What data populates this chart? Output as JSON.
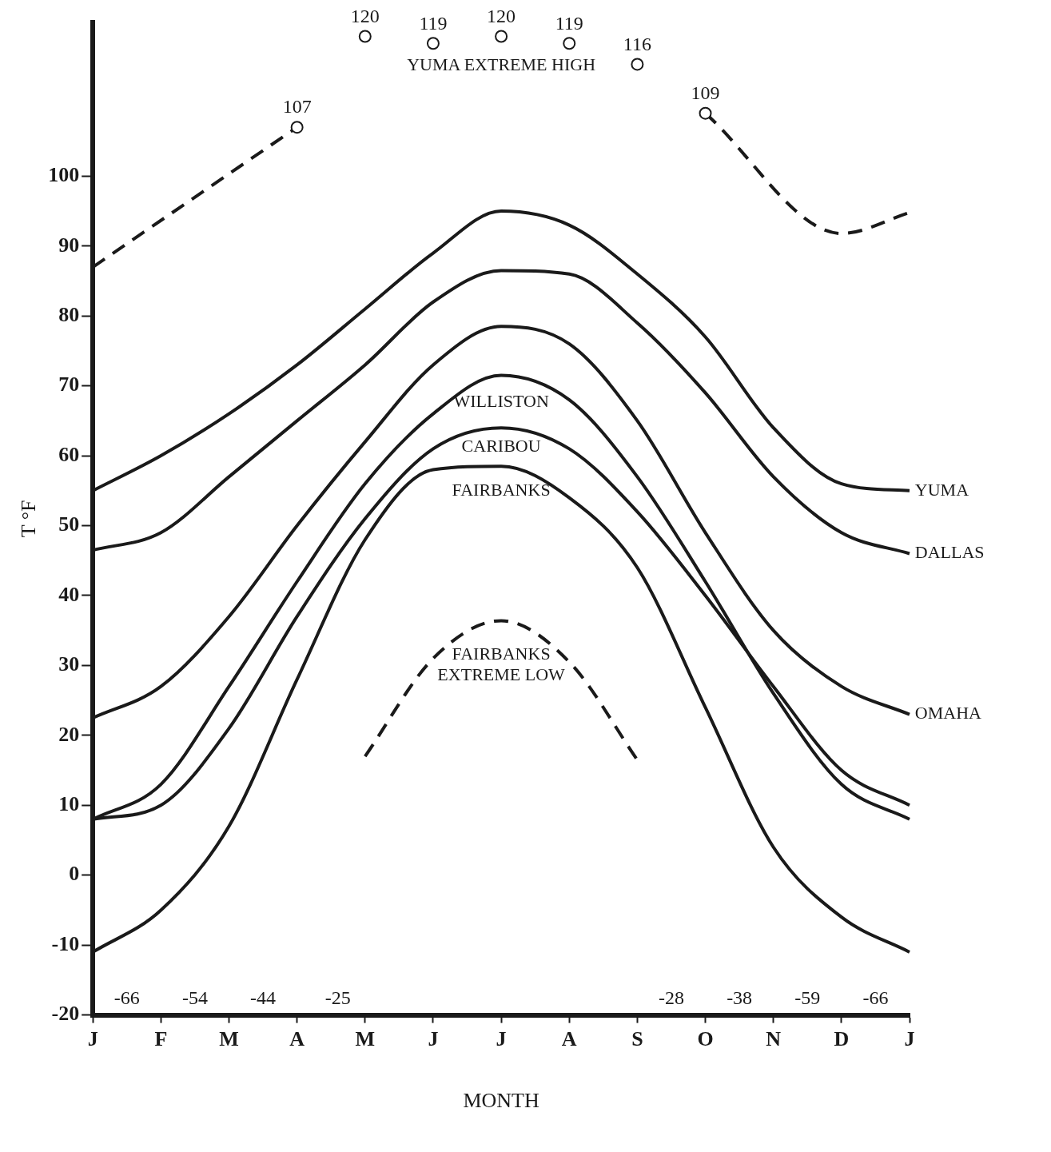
{
  "chart_data": {
    "type": "line",
    "xlabel": "MONTH",
    "ylabel": "T °F",
    "categories": [
      "J",
      "F",
      "M",
      "A",
      "M",
      "J",
      "J",
      "A",
      "S",
      "O",
      "N",
      "D",
      "J"
    ],
    "ylim": [
      -20,
      122
    ],
    "yticks": [
      -20,
      -10,
      0,
      10,
      20,
      30,
      40,
      50,
      60,
      70,
      80,
      90,
      100
    ],
    "grid": false,
    "legend": false,
    "marker": "none",
    "line_style": "solid",
    "series": [
      {
        "name": "YUMA",
        "color": "#1a1a1a",
        "values": [
          55,
          60,
          66,
          73,
          81,
          89,
          95,
          93,
          86,
          77,
          64,
          56,
          55
        ]
      },
      {
        "name": "DALLAS",
        "color": "#1a1a1a",
        "values": [
          46.5,
          49,
          57,
          65,
          73,
          82,
          86.5,
          86,
          79,
          69,
          57,
          49,
          46
        ]
      },
      {
        "name": "OMAHA",
        "color": "#1a1a1a",
        "values": [
          22.5,
          27,
          37,
          50,
          62,
          73,
          78.5,
          76,
          65,
          49,
          35,
          27,
          23
        ]
      },
      {
        "name": "WILLISTON",
        "color": "#1a1a1a",
        "values": [
          8,
          13,
          27,
          42,
          56,
          66,
          71.5,
          68,
          57,
          42,
          26,
          13,
          8
        ]
      },
      {
        "name": "CARIBOU",
        "color": "#1a1a1a",
        "values": [
          8,
          10,
          21,
          37,
          51,
          61,
          64,
          61,
          52,
          40,
          27,
          15,
          10
        ]
      },
      {
        "name": "FAIRBANKS",
        "color": "#1a1a1a",
        "values": [
          -11,
          -5,
          7,
          28,
          48,
          58,
          58.5,
          54,
          44,
          24,
          4,
          -6,
          -11
        ]
      },
      {
        "name": "YUMA EXTREME HIGH",
        "type": "scatter",
        "marker": "circle",
        "color": "#1a1a1a",
        "values": [
          null,
          null,
          null,
          107,
          120,
          119,
          120,
          119,
          116,
          109,
          null,
          null,
          null
        ],
        "value_labels": [
          null,
          null,
          null,
          "107",
          "120",
          "119",
          "120",
          "119",
          "116",
          "109",
          null,
          null,
          null
        ]
      },
      {
        "color": "#1a1a1a",
        "line_style": "dashed",
        "values": [
          87,
          null,
          null,
          107,
          null,
          null,
          null,
          null,
          null,
          null,
          null,
          null,
          null
        ]
      },
      {
        "color": "#1a1a1a",
        "line_style": "dashed",
        "values": [
          null,
          null,
          null,
          null,
          null,
          null,
          null,
          null,
          null,
          109,
          null,
          91.8,
          94.8
        ]
      },
      {
        "name": "FAIRBANKS EXTREME LOW",
        "color": "#1a1a1a",
        "line_style": "dashed",
        "values": [
          null,
          null,
          null,
          null,
          17,
          31,
          36.4,
          30.5,
          16.5,
          null,
          null,
          null,
          null
        ]
      }
    ],
    "annotations": [
      "-66",
      "-54",
      "-44",
      "-25",
      "-28",
      "-38",
      "-59",
      "-66"
    ]
  }
}
